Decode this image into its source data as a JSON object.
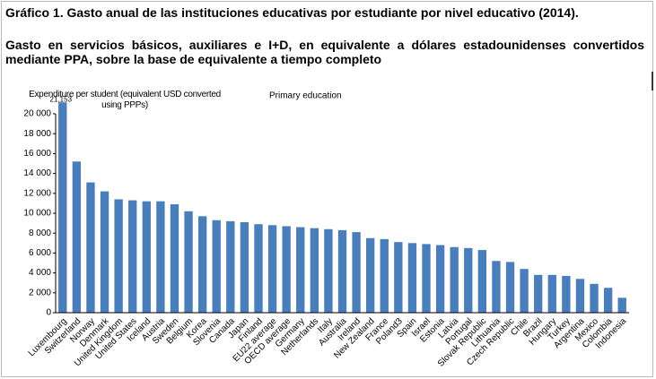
{
  "chart_data": {
    "type": "bar",
    "title": "Gráfico 1. Gasto anual de las instituciones educativas por estudiante por nivel educativo (2014).",
    "subtitle": "Gasto en servicios básicos, auxiliares e I+D, en equivalente a dólares estadounidenses convertidos mediante PPA, sobre la base de equivalente a tiempo completo",
    "y_label": "Expenditure per student (equivalent USD converted using PPPs)",
    "annotation": "Primary education",
    "categories": [
      "Luxembourg",
      "Switzerland",
      "Norway",
      "Denmark",
      "United Kingdom",
      "United States",
      "Iceland",
      "Austria",
      "Sweden",
      "Belgium",
      "Korea",
      "Slovenia",
      "Canada",
      "Japan",
      "Finland",
      "EU22 average",
      "OECD average",
      "Germany",
      "Netherlands",
      "Italy",
      "Australia",
      "Ireland",
      "New Zealand",
      "France",
      "Poland3",
      "Spain",
      "Israel",
      "Estonia",
      "Latvia",
      "Portugal",
      "Slovak Republic",
      "Lithuania",
      "Czech Republic",
      "Chile",
      "Brazil",
      "Hungary",
      "Turkey",
      "Argentina",
      "Mexico",
      "Colombia",
      "Indonesia"
    ],
    "values": [
      21153,
      15200,
      13100,
      12200,
      11400,
      11300,
      11200,
      11200,
      10900,
      10200,
      9700,
      9300,
      9200,
      9100,
      8900,
      8800,
      8700,
      8600,
      8500,
      8400,
      8300,
      8100,
      7500,
      7400,
      7100,
      7000,
      6900,
      6800,
      6600,
      6500,
      6300,
      5200,
      5100,
      4400,
      3800,
      3800,
      3700,
      3400,
      2900,
      2500,
      1500
    ],
    "value_labels": [
      "21,153",
      null,
      null,
      null,
      null,
      null,
      null,
      null,
      null,
      null,
      null,
      null,
      null,
      null,
      null,
      null,
      null,
      null,
      null,
      null,
      null,
      null,
      null,
      null,
      null,
      null,
      null,
      null,
      null,
      null,
      null,
      null,
      null,
      null,
      null,
      null,
      null,
      null,
      null,
      null,
      null
    ],
    "color": "#4a7ebb",
    "ylim": [
      0,
      20000
    ],
    "yticks": [
      0,
      {
        "value": 2000,
        "label": "2 000"
      },
      {
        "value": 4000,
        "label": "4 000"
      },
      {
        "value": 6000,
        "label": "6 000"
      },
      {
        "value": 8000,
        "label": "8 000"
      },
      {
        "value": 10000,
        "label": "10 000"
      },
      {
        "value": 12000,
        "label": "12 000"
      },
      {
        "value": 14000,
        "label": "14 000"
      },
      {
        "value": 16000,
        "label": "16 000"
      },
      {
        "value": 18000,
        "label": "18 000"
      },
      {
        "value": 20000,
        "label": "20 000"
      }
    ],
    "grid": false
  }
}
